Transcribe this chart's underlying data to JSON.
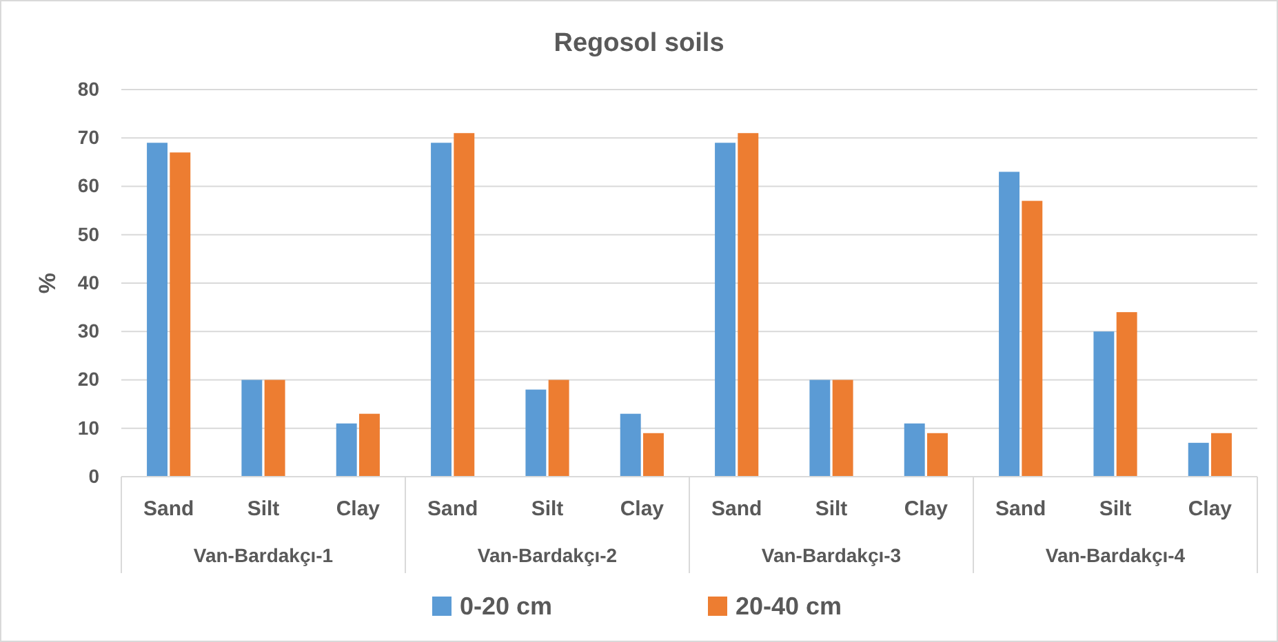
{
  "chart_data": {
    "type": "bar",
    "title": "Regosol soils",
    "ylabel": "%",
    "categories": [
      "Sand",
      "Silt",
      "Clay",
      "Sand",
      "Silt",
      "Clay",
      "Sand",
      "Silt",
      "Clay",
      "Sand",
      "Silt",
      "Clay"
    ],
    "annotations": [
      "Van-Bardakçı-1",
      "Van-Bardakçı-2",
      "Van-Bardakçı-3",
      "Van-Bardakçı-4"
    ],
    "series": [
      {
        "name": "0-20 cm",
        "color": "#5b9bd5",
        "values": [
          69,
          20,
          11,
          69,
          18,
          13,
          69,
          20,
          11,
          63,
          30,
          7
        ]
      },
      {
        "name": "20-40 cm",
        "color": "#ed7d31",
        "values": [
          67,
          20,
          13,
          71,
          20,
          9,
          71,
          20,
          9,
          57,
          34,
          9
        ]
      }
    ],
    "ylim": [
      0,
      80
    ],
    "yticks": [
      0,
      10,
      20,
      30,
      40,
      50,
      60,
      70,
      80
    ],
    "grid": "y",
    "legend": "bottom"
  }
}
